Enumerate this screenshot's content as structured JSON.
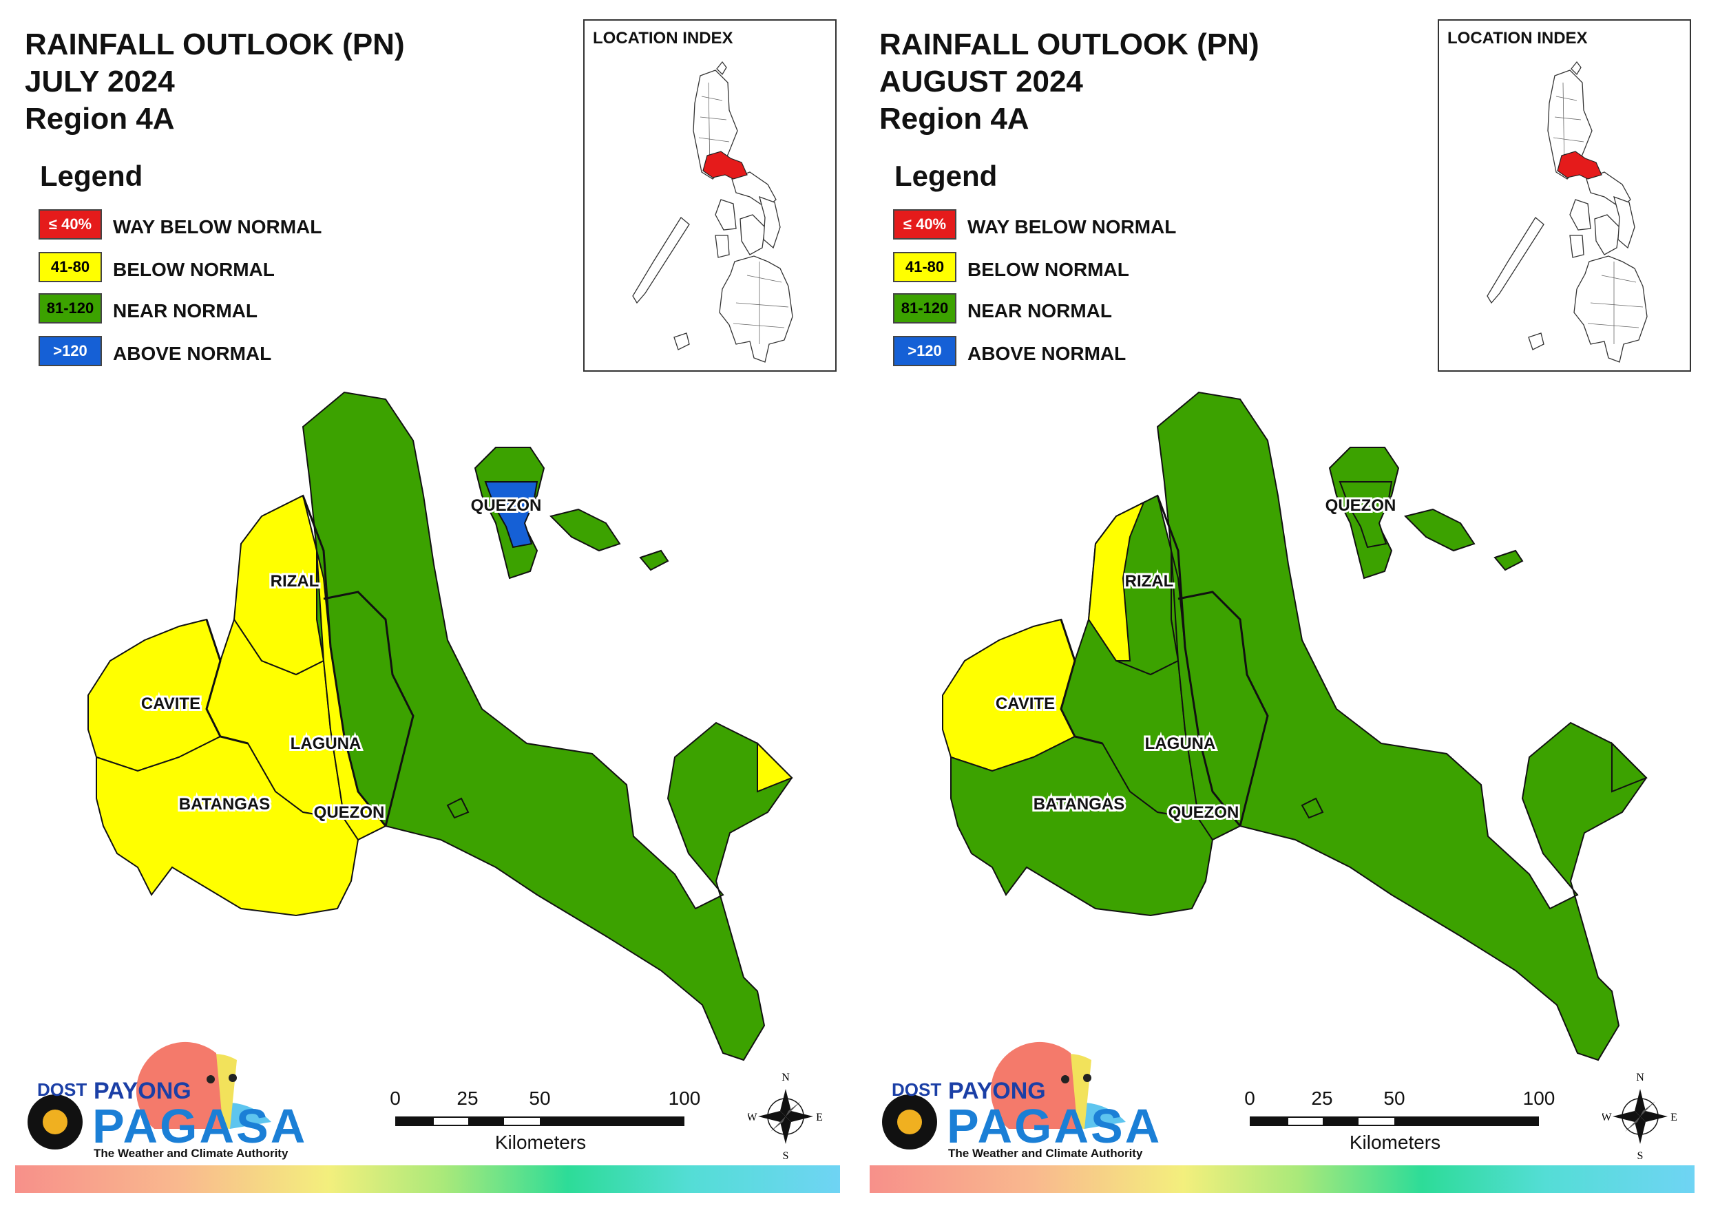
{
  "colors": {
    "way_below": "#e51b1b",
    "below": "#ffff00",
    "near": "#3ca200",
    "above": "#1560d6"
  },
  "legend": {
    "title": "Legend",
    "items": [
      {
        "range": "≤ 40%",
        "label": "WAY BELOW NORMAL",
        "color": "#e51b1b",
        "text_color": "#ffffff"
      },
      {
        "range": "41-80",
        "label": "BELOW NORMAL",
        "color": "#ffff00",
        "text_color": "#000000"
      },
      {
        "range": "81-120",
        "label": "NEAR NORMAL",
        "color": "#3ca200",
        "text_color": "#000000"
      },
      {
        "range": ">120",
        "label": "ABOVE NORMAL",
        "color": "#1560d6",
        "text_color": "#ffffff"
      }
    ]
  },
  "location_index": {
    "title": "LOCATION INDEX"
  },
  "provinces": {
    "rizal": "RIZAL",
    "cavite": "CAVITE",
    "laguna": "LAGUNA",
    "batangas": "BATANGAS",
    "quezon": "QUEZON",
    "quezon_north": "QUEZON"
  },
  "scale": {
    "ticks": [
      "0",
      "25",
      "50",
      "100"
    ],
    "unit": "Kilometers"
  },
  "compass": {
    "n": "N",
    "s": "S",
    "e": "E",
    "w": "W"
  },
  "logo": {
    "dost": "DOST",
    "payong": "PAYONG",
    "pagasa": "PAGASA",
    "tagline": "The Weather and Climate Authority"
  },
  "maps": [
    {
      "title_line1": "RAINFALL OUTLOOK (PN)",
      "title_line2": "JULY 2024",
      "title_line3": "Region 4A",
      "categories": {
        "rizal": "below",
        "cavite": "below",
        "laguna": "below",
        "batangas": "below",
        "quezon_west": "below",
        "quezon_main": "near",
        "quezon_north": "near",
        "polillo_center": "above",
        "bondoc_tip": "below"
      }
    },
    {
      "title_line1": "RAINFALL OUTLOOK (PN)",
      "title_line2": "AUGUST 2024",
      "title_line3": "Region 4A",
      "categories": {
        "rizal": "near",
        "cavite": "below",
        "laguna": "near",
        "batangas": "near",
        "quezon_west": "near",
        "quezon_main": "near",
        "quezon_north": "near",
        "polillo_center": "near",
        "bondoc_tip": "near"
      }
    }
  ]
}
